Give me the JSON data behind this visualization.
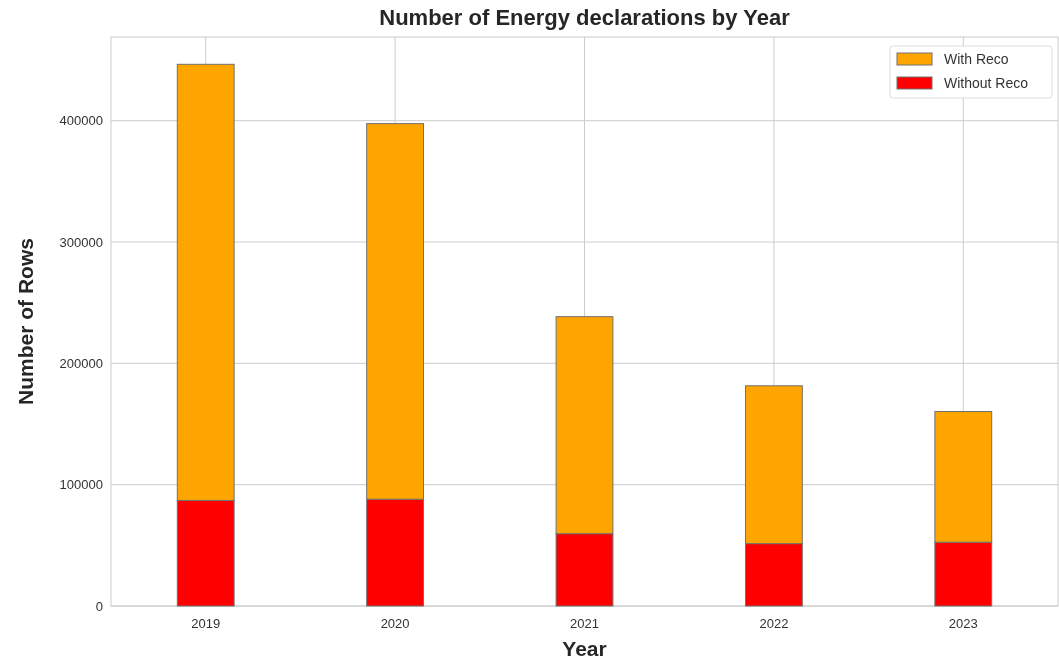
{
  "chart_data": {
    "type": "bar",
    "title": "Number of Energy declarations by Year",
    "xlabel": "Year",
    "ylabel": "Number of Rows",
    "categories": [
      "2019",
      "2020",
      "2021",
      "2022",
      "2023"
    ],
    "stacked": true,
    "series": [
      {
        "name": "Without Reco",
        "color": "#ff0000",
        "values": [
          87000,
          88000,
          59600,
          51400,
          52600
        ]
      },
      {
        "name": "With Reco",
        "color": "#ffa500",
        "values": [
          359500,
          309600,
          178900,
          130100,
          107700
        ]
      }
    ],
    "ylim": [
      0,
      469000
    ],
    "yticks": [
      0,
      100000,
      200000,
      300000,
      400000
    ],
    "grid": true,
    "legend": "top right"
  }
}
